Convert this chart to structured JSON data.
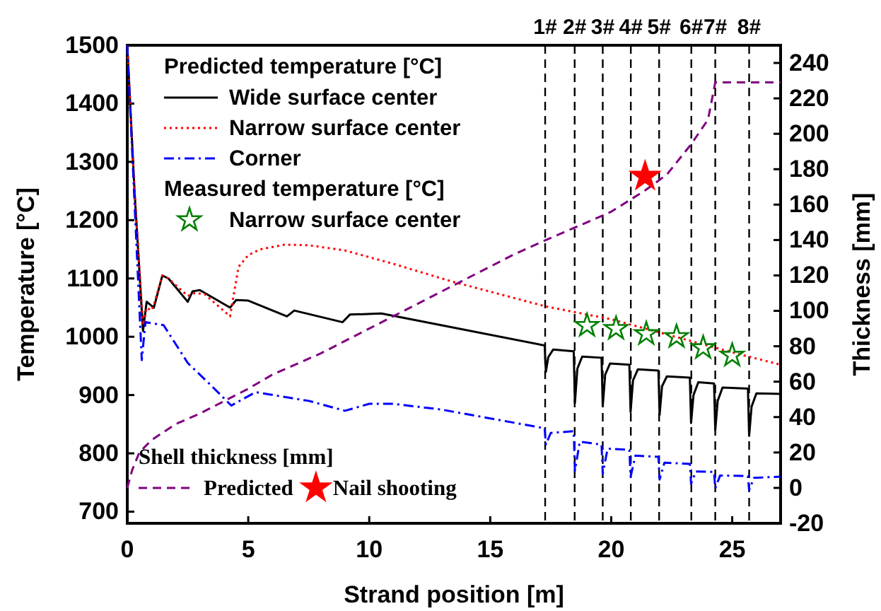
{
  "chart_data": {
    "type": "line",
    "xlabel": "Strand position [m]",
    "ylabel": "Temperature [°C]",
    "y2label": "Thickness [mm]",
    "xlim": [
      0,
      27
    ],
    "xticks": [
      0,
      5,
      10,
      15,
      20,
      25
    ],
    "ylim": [
      680,
      1500
    ],
    "yticks": [
      700,
      800,
      900,
      1000,
      1100,
      1200,
      1300,
      1400,
      1500
    ],
    "y2lim": [
      -20,
      250
    ],
    "y2ticks": [
      -20,
      0,
      20,
      40,
      60,
      80,
      100,
      120,
      140,
      160,
      180,
      200,
      220,
      240
    ],
    "legend": "left",
    "annotations": [
      "Predicted temperature [°C]",
      "Measured temperature [°C]",
      "Shell thickness [mm]",
      "1#",
      "2#",
      "3#",
      "4#",
      "5#",
      "6#",
      "7#",
      "8#"
    ],
    "ref_lines": [
      {
        "axis": "x",
        "value": 17.27,
        "color": "#000000",
        "line_style": "dashed"
      },
      {
        "axis": "x",
        "value": 18.49,
        "color": "#000000",
        "line_style": "dashed"
      },
      {
        "axis": "x",
        "value": 19.65,
        "color": "#000000",
        "line_style": "dashed"
      },
      {
        "axis": "x",
        "value": 20.81,
        "color": "#000000",
        "line_style": "dashed"
      },
      {
        "axis": "x",
        "value": 21.98,
        "color": "#000000",
        "line_style": "dashed"
      },
      {
        "axis": "x",
        "value": 23.31,
        "color": "#000000",
        "line_style": "dashed"
      },
      {
        "axis": "x",
        "value": 24.3,
        "color": "#000000",
        "line_style": "dashed"
      },
      {
        "axis": "x",
        "value": 25.7,
        "color": "#000000",
        "line_style": "dashed"
      }
    ],
    "series": [
      {
        "name": "Wide surface center",
        "color": "#000000",
        "line_style": "solid",
        "x": [
          0,
          0.3,
          0.65,
          0.8,
          0.95,
          1.1,
          1.45,
          1.7,
          2.4,
          2.5,
          2.7,
          3.0,
          4.25,
          4.5,
          5.0,
          6.6,
          6.9,
          8.9,
          9.2,
          10.5,
          17.25,
          17.3,
          17.4,
          17.6,
          18.45,
          18.5,
          18.6,
          18.8,
          19.6,
          19.65,
          19.75,
          19.95,
          20.75,
          20.8,
          20.9,
          21.1,
          21.95,
          22.0,
          22.1,
          22.3,
          23.25,
          23.3,
          23.4,
          23.6,
          24.25,
          24.3,
          24.4,
          24.6,
          25.65,
          25.7,
          25.8,
          26.0,
          27
        ],
        "values": [
          1500,
          1250,
          1010,
          1060,
          1055,
          1050,
          1105,
          1100,
          1065,
          1060,
          1078,
          1080,
          1050,
          1063,
          1062,
          1035,
          1045,
          1025,
          1038,
          1040,
          985,
          940,
          965,
          978,
          975,
          886,
          945,
          966,
          964,
          881,
          935,
          954,
          952,
          871,
          925,
          944,
          942,
          866,
          915,
          932,
          930,
          852,
          900,
          922,
          920,
          840,
          890,
          913,
          911,
          830,
          880,
          903,
          902
        ]
      },
      {
        "name": "Narrow surface center",
        "color": "#ff0000",
        "line_style": "dotted",
        "x": [
          0,
          0.3,
          0.65,
          0.8,
          1.0,
          1.1,
          1.45,
          1.7,
          2.5,
          2.8,
          3.2,
          4.25,
          4.35,
          4.6,
          5.0,
          5.5,
          6.5,
          7.5,
          9,
          11,
          13.4,
          17.3,
          20,
          25.3,
          27
        ],
        "values": [
          1500,
          1250,
          1020,
          1050,
          1045,
          1055,
          1105,
          1100,
          1070,
          1075,
          1073,
          1035,
          1060,
          1120,
          1140,
          1150,
          1158,
          1157,
          1148,
          1125,
          1095,
          1052,
          1030,
          970,
          952
        ]
      },
      {
        "name": "Corner",
        "color": "#0000ff",
        "line_style": "dashdot",
        "x": [
          0,
          0.3,
          0.6,
          0.75,
          1.5,
          2.5,
          3.5,
          4.3,
          5.3,
          7.5,
          9,
          10,
          11,
          13,
          17.25,
          17.3,
          17.5,
          18.45,
          18.5,
          18.7,
          19.6,
          19.65,
          19.85,
          20.75,
          20.8,
          21.0,
          21.95,
          22.0,
          22.2,
          23.25,
          23.3,
          23.5,
          24.25,
          24.3,
          24.5,
          25.65,
          25.7,
          25.9,
          27
        ],
        "values": [
          1500,
          1230,
          960,
          1025,
          1020,
          955,
          915,
          882,
          905,
          890,
          873,
          885,
          885,
          875,
          843,
          815,
          835,
          838,
          770,
          820,
          815,
          765,
          808,
          806,
          760,
          796,
          794,
          755,
          784,
          782,
          748,
          769,
          768,
          740,
          762,
          761,
          737,
          758,
          760
        ]
      },
      {
        "name": "Narrow surface center",
        "type": "scatter",
        "marker": "star",
        "color": "#008000",
        "x": [
          19.0,
          20.2,
          21.45,
          22.7,
          23.8,
          25.0
        ],
        "values": [
          1019,
          1014,
          1005,
          1000,
          981,
          968
        ]
      },
      {
        "name": "Predicted",
        "axis": "y2",
        "color": "#800080",
        "line_style": "dashed",
        "x": [
          0,
          0.2,
          0.5,
          1,
          2,
          3,
          4,
          5,
          6,
          8,
          10,
          12,
          14,
          16,
          17.3,
          19,
          20,
          21.4,
          22.3,
          23.3,
          24,
          24.3,
          27
        ],
        "values": [
          0,
          10,
          20,
          27,
          36,
          42,
          49,
          56,
          64,
          76,
          90,
          104,
          118,
          132,
          140,
          150,
          156,
          168,
          177,
          194,
          208,
          229,
          229
        ]
      },
      {
        "name": "Nail shooting",
        "type": "scatter",
        "axis": "y2",
        "marker": "star",
        "color": "#ff0000",
        "x": [
          21.4
        ],
        "values": [
          176
        ]
      }
    ]
  }
}
